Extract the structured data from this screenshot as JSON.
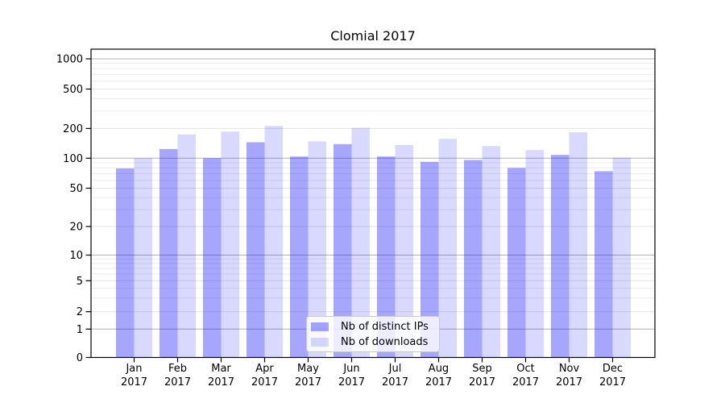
{
  "chart_data": {
    "type": "bar",
    "title": "Clomial 2017",
    "categories": [
      "Jan",
      "Feb",
      "Mar",
      "Apr",
      "May",
      "Jun",
      "Jul",
      "Aug",
      "Sep",
      "Oct",
      "Nov",
      "Dec"
    ],
    "x_year_label": "2017",
    "series": [
      {
        "name": "Nb of distinct IPs",
        "color": "rgba(0,0,255,0.35)",
        "values": [
          79,
          124,
          100,
          145,
          104,
          139,
          104,
          92,
          96,
          80,
          108,
          74
        ]
      },
      {
        "name": "Nb of downloads",
        "color": "rgba(0,0,255,0.15)",
        "values": [
          100,
          174,
          186,
          212,
          148,
          203,
          136,
          157,
          133,
          121,
          183,
          101
        ]
      }
    ],
    "y_axis": {
      "scale": "symlog",
      "ticks": [
        0,
        1,
        2,
        5,
        10,
        20,
        50,
        100,
        200,
        500,
        1000
      ],
      "decade_ticks": [
        1,
        10,
        100,
        1000
      ],
      "minor_gridlines": [
        3,
        4,
        6,
        7,
        8,
        9,
        30,
        40,
        60,
        70,
        80,
        90,
        300,
        400,
        600,
        700,
        800,
        900
      ],
      "ylim": [
        0,
        1250
      ]
    },
    "legend": {
      "position": "lower center"
    },
    "grid": true,
    "colors": {
      "grid_decade": "#b3b3b3",
      "grid_labeled": "#e3e3e3",
      "grid_minor": "#ececec",
      "axis": "#000000",
      "text": "#000000"
    }
  }
}
